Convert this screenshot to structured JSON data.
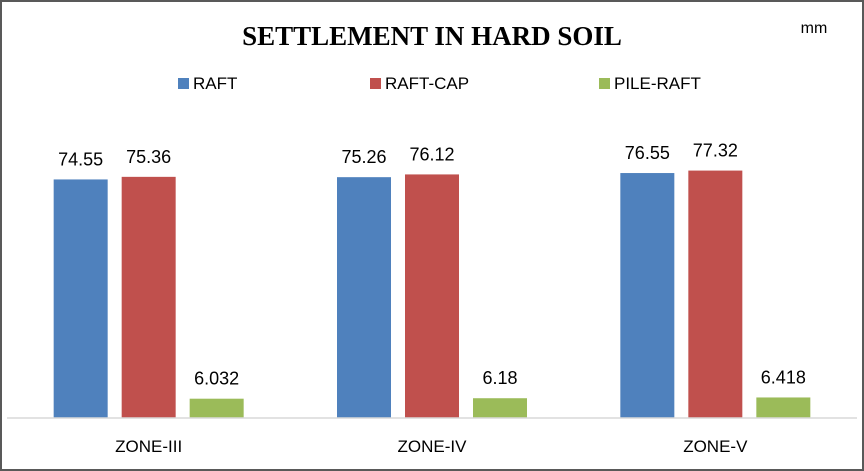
{
  "chart_data": {
    "type": "bar",
    "title": "SETTLEMENT  IN HARD SOIL",
    "unit": "mm",
    "categories": [
      "ZONE-III",
      "ZONE-IV",
      "ZONE-V"
    ],
    "series": [
      {
        "name": "RAFT",
        "color": "#4f81bd",
        "values": [
          74.55,
          75.26,
          76.55
        ],
        "labels": [
          "74.55",
          "75.26",
          "76.55"
        ]
      },
      {
        "name": "RAFT-CAP",
        "color": "#c0504d",
        "values": [
          75.36,
          76.12,
          77.32
        ],
        "labels": [
          "75.36",
          "76.12",
          "77.32"
        ]
      },
      {
        "name": "PILE-RAFT",
        "color": "#9bbb59",
        "values": [
          6.032,
          6.18,
          6.418
        ],
        "labels": [
          "6.032",
          "6.18",
          "6.418"
        ]
      }
    ],
    "ylim": [
      0,
      100
    ],
    "xlabel": "",
    "ylabel": "",
    "grid": false,
    "legend_position": "top"
  }
}
